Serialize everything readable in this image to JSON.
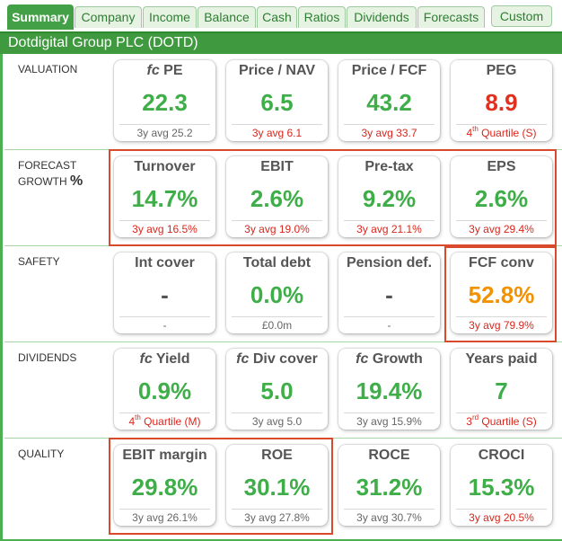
{
  "tabs": [
    {
      "label": "Summary",
      "active": true
    },
    {
      "label": "Company"
    },
    {
      "label": "Income"
    },
    {
      "label": "Balance"
    },
    {
      "label": "Cash"
    },
    {
      "label": "Ratios"
    },
    {
      "label": "Dividends"
    },
    {
      "label": "Forecasts"
    },
    {
      "label": "Custom"
    }
  ],
  "title": "Dotdigital Group PLC (DOTD)",
  "colors": {
    "accent_green": "#3fae49",
    "bad_red": "#e0301e",
    "warn_orange": "#f29200",
    "highlight": "#d9492c"
  },
  "sections": [
    {
      "label": "VALUATION",
      "cards": [
        {
          "head_prefix": "fc",
          "head": " PE",
          "value": "22.3",
          "foot": "3y avg 25.2"
        },
        {
          "head": "Price / NAV",
          "value": "6.5",
          "foot": "3y avg 6.1"
        },
        {
          "head": "Price / FCF",
          "value": "43.2",
          "foot": "3y avg 33.7"
        },
        {
          "head": "PEG",
          "value": "8.9",
          "foot_num": "4",
          "foot_sup": "th",
          "foot_rest": " Quartile (S)"
        }
      ]
    },
    {
      "label": "FORECAST",
      "label2": "GROWTH",
      "label2_suffix": "%",
      "cards": [
        {
          "head": "Turnover",
          "value": "14.7%",
          "foot": "3y avg 16.5%"
        },
        {
          "head": "EBIT",
          "value": "2.6%",
          "foot": "3y avg 19.0%"
        },
        {
          "head": "Pre-tax",
          "value": "9.2%",
          "foot": "3y avg 21.1%"
        },
        {
          "head": "EPS",
          "value": "2.6%",
          "foot": "3y avg 29.4%"
        }
      ]
    },
    {
      "label": "SAFETY",
      "cards": [
        {
          "head": "Int cover",
          "value": "-",
          "foot": "-"
        },
        {
          "head": "Total debt",
          "value": "0.0%",
          "foot": "£0.0m"
        },
        {
          "head": "Pension def.",
          "value": "-",
          "foot": "-"
        },
        {
          "head": "FCF conv",
          "value": "52.8%",
          "foot": "3y avg 79.9%"
        }
      ]
    },
    {
      "label": "DIVIDENDS",
      "cards": [
        {
          "head_prefix": "fc",
          "head": " Yield",
          "value": "0.9%",
          "foot_num": "4",
          "foot_sup": "th",
          "foot_rest": " Quartile (M)"
        },
        {
          "head_prefix": "fc",
          "head": " Div cover",
          "value": "5.0",
          "foot": "3y avg 5.0"
        },
        {
          "head_prefix": "fc",
          "head": " Growth",
          "value": "19.4%",
          "foot": "3y avg 15.9%"
        },
        {
          "head": "Years paid",
          "value": "7",
          "foot_num": "3",
          "foot_sup": "rd",
          "foot_rest": " Quartile (S)"
        }
      ]
    },
    {
      "label": "QUALITY",
      "cards": [
        {
          "head": "EBIT margin",
          "value": "29.8%",
          "foot": "3y avg 26.1%"
        },
        {
          "head": "ROE",
          "value": "30.1%",
          "foot": "3y avg 27.8%"
        },
        {
          "head": "ROCE",
          "value": "31.2%",
          "foot": "3y avg 30.7%"
        },
        {
          "head": "CROCI",
          "value": "15.3%",
          "foot": "3y avg 20.5%"
        }
      ]
    }
  ]
}
